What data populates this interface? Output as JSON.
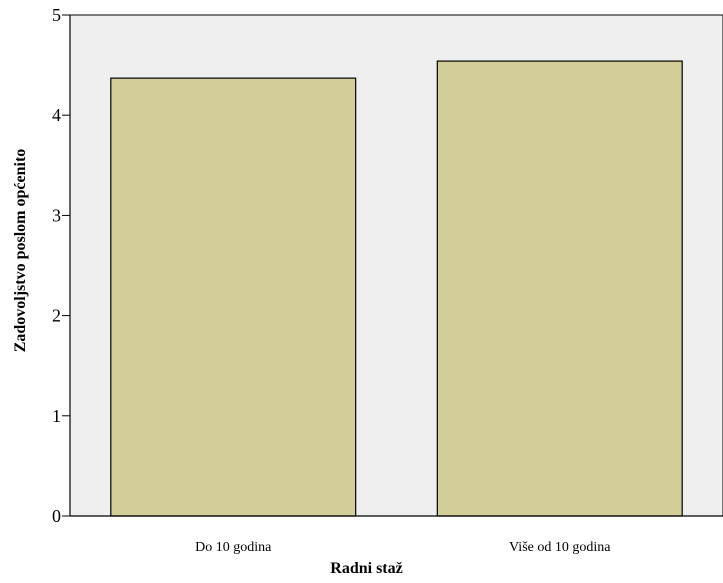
{
  "chart_data": {
    "type": "bar",
    "title": "",
    "xlabel": "Radni staž",
    "ylabel": "Zadovoljstvo poslom općenito",
    "categories": [
      "Do 10 godina",
      "Više od 10 godina"
    ],
    "values": [
      4.37,
      4.54
    ],
    "ylim": [
      0,
      5
    ],
    "yticks": [
      "0",
      "1",
      "2",
      "3",
      "4",
      "5"
    ],
    "grid": false,
    "legend": "none",
    "colors": {
      "plot_background": "#efefef",
      "bar_fill": "#d3ce97",
      "bar_stroke": "#000000",
      "axis": "#000000"
    }
  }
}
